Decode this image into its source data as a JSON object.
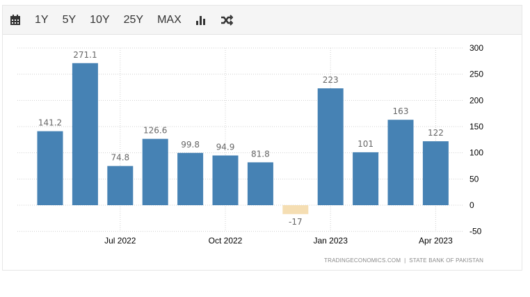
{
  "toolbar": {
    "ranges": [
      "1Y",
      "5Y",
      "10Y",
      "25Y",
      "MAX"
    ],
    "icons": [
      "calendar-icon",
      "bar-chart-icon",
      "shuffle-icon"
    ]
  },
  "colors": {
    "positive": "#4682b4",
    "negative": "#f5deb3"
  },
  "source": "TRADINGECONOMICS.COM  |  STATE BANK OF PAKISTAN",
  "chart_data": {
    "type": "bar",
    "categories": [
      "May 2022",
      "Jun 2022",
      "Jul 2022",
      "Aug 2022",
      "Sep 2022",
      "Oct 2022",
      "Nov 2022",
      "Dec 2022",
      "Jan 2023",
      "Feb 2023",
      "Mar 2023",
      "Apr 2023"
    ],
    "values": [
      141.2,
      271.1,
      74.8,
      126.6,
      99.8,
      94.9,
      81.8,
      -17,
      223,
      101,
      163,
      122
    ],
    "value_labels": [
      "141.2",
      "271.1",
      "74.8",
      "126.6",
      "99.8",
      "94.9",
      "81.8",
      "-17",
      "223",
      "101",
      "163",
      "122"
    ],
    "x_ticks": [
      "Jul 2022",
      "Oct 2022",
      "Jan 2023",
      "Apr 2023"
    ],
    "y_ticks": [
      "300",
      "250",
      "200",
      "150",
      "100",
      "50",
      "0",
      "-50"
    ],
    "ylim": [
      -50,
      300
    ],
    "grid": true,
    "yaxis_side": "right"
  }
}
